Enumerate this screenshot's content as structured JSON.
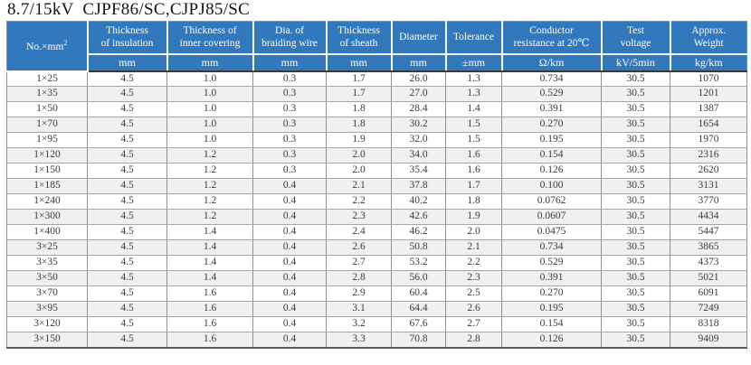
{
  "title": "8.7/15kV  CJPF86/SC,CJPJ85/SC",
  "colors": {
    "header_bg": "#3278BD",
    "header_text": "#FFFFFF",
    "row_alt_bg": "#F0F0F0",
    "body_text": "#3A3A3A"
  },
  "table": {
    "first_column": {
      "label": "No.×mm",
      "sup": "2"
    },
    "columns": [
      {
        "label": "Thickness\nof insulation",
        "unit": "mm"
      },
      {
        "label": "Thickness of\ninner covering",
        "unit": "mm"
      },
      {
        "label": "Dia. of\nbraiding wire",
        "unit": "mm"
      },
      {
        "label": "Thickness\nof sheath",
        "unit": "mm"
      },
      {
        "label": "Diameter",
        "unit": "mm"
      },
      {
        "label": "Tolerance",
        "unit": "±mm"
      },
      {
        "label": "Conductor\nresistance at 20℃",
        "unit": "Ω/km"
      },
      {
        "label": "Test\nvoltage",
        "unit": "kV/5min"
      },
      {
        "label": "Approx.\nWeight",
        "unit": "kg/km"
      }
    ],
    "rows": [
      [
        "1×25",
        "4.5",
        "1.0",
        "0.3",
        "1.7",
        "26.0",
        "1.3",
        "0.734",
        "30.5",
        "1070"
      ],
      [
        "1×35",
        "4.5",
        "1.0",
        "0.3",
        "1.7",
        "27.0",
        "1.3",
        "0.529",
        "30.5",
        "1201"
      ],
      [
        "1×50",
        "4.5",
        "1.0",
        "0.3",
        "1.8",
        "28.4",
        "1.4",
        "0.391",
        "30.5",
        "1387"
      ],
      [
        "1×70",
        "4.5",
        "1.0",
        "0.3",
        "1.8",
        "30.2",
        "1.5",
        "0.270",
        "30.5",
        "1654"
      ],
      [
        "1×95",
        "4.5",
        "1.0",
        "0.3",
        "1.9",
        "32.0",
        "1.5",
        "0.195",
        "30.5",
        "1970"
      ],
      [
        "1×120",
        "4.5",
        "1.2",
        "0.3",
        "2.0",
        "34.0",
        "1.6",
        "0.154",
        "30.5",
        "2316"
      ],
      [
        "1×150",
        "4.5",
        "1.2",
        "0.3",
        "2.0",
        "35.4",
        "1.6",
        "0.126",
        "30.5",
        "2620"
      ],
      [
        "1×185",
        "4.5",
        "1.2",
        "0.4",
        "2.1",
        "37.8",
        "1.7",
        "0.100",
        "30.5",
        "3131"
      ],
      [
        "1×240",
        "4.5",
        "1.2",
        "0.4",
        "2.2",
        "40.2",
        "1.8",
        "0.0762",
        "30.5",
        "3770"
      ],
      [
        "1×300",
        "4.5",
        "1.2",
        "0.4",
        "2.3",
        "42.6",
        "1.9",
        "0.0607",
        "30.5",
        "4434"
      ],
      [
        "1×400",
        "4.5",
        "1.4",
        "0.4",
        "2.4",
        "46.2",
        "2.0",
        "0.0475",
        "30.5",
        "5447"
      ],
      [
        "3×25",
        "4.5",
        "1.4",
        "0.4",
        "2.6",
        "50.8",
        "2.1",
        "0.734",
        "30.5",
        "3865"
      ],
      [
        "3×35",
        "4.5",
        "1.4",
        "0.4",
        "2.7",
        "53.2",
        "2.2",
        "0.529",
        "30.5",
        "4373"
      ],
      [
        "3×50",
        "4.5",
        "1.4",
        "0.4",
        "2.8",
        "56.0",
        "2.3",
        "0.391",
        "30.5",
        "5021"
      ],
      [
        "3×70",
        "4.5",
        "1.6",
        "0.4",
        "2.9",
        "60.4",
        "2.5",
        "0.270",
        "30.5",
        "6091"
      ],
      [
        "3×95",
        "4.5",
        "1.6",
        "0.4",
        "3.1",
        "64.4",
        "2.6",
        "0.195",
        "30.5",
        "7249"
      ],
      [
        "3×120",
        "4.5",
        "1.6",
        "0.4",
        "3.2",
        "67.6",
        "2.7",
        "0.154",
        "30.5",
        "8318"
      ],
      [
        "3×150",
        "4.5",
        "1.6",
        "0.4",
        "3.3",
        "70.8",
        "2.8",
        "0.126",
        "30.5",
        "9409"
      ]
    ]
  }
}
